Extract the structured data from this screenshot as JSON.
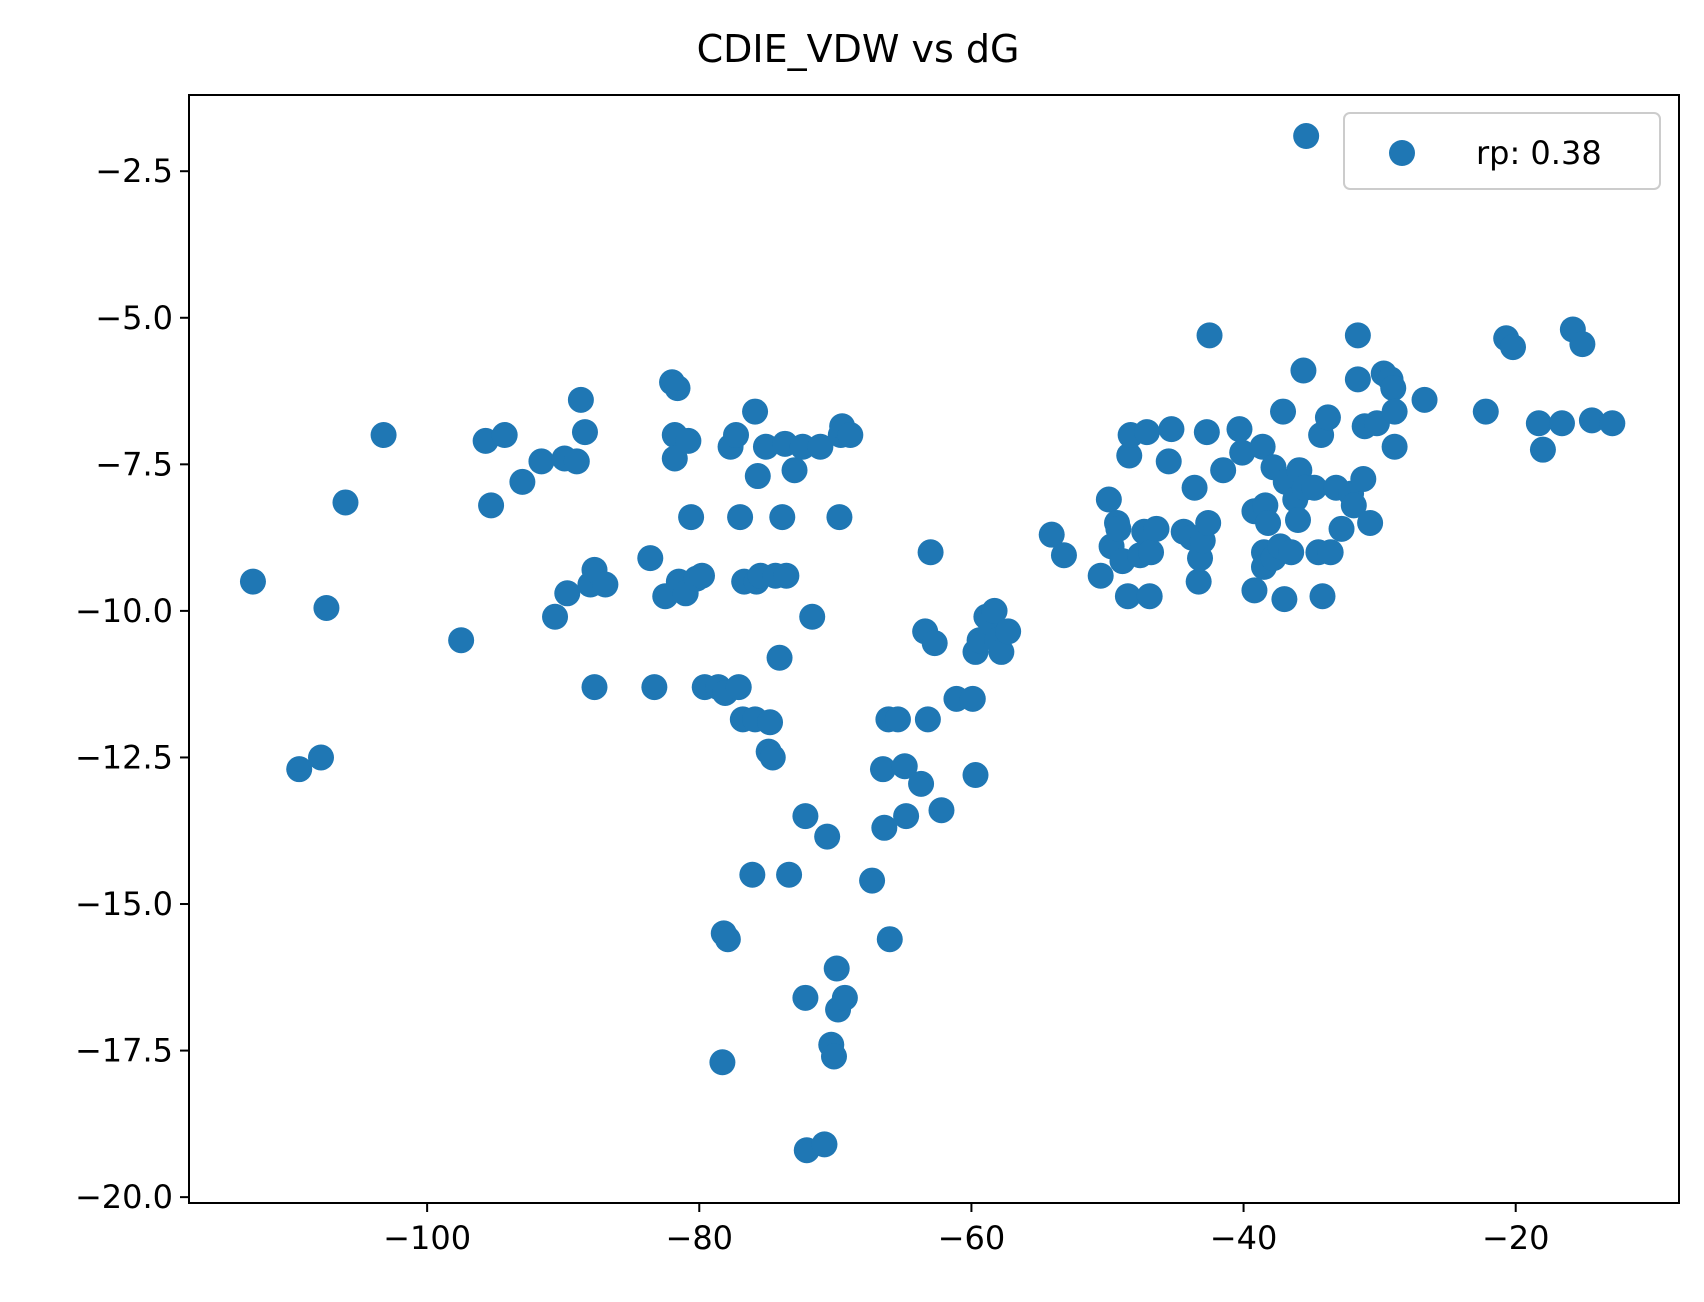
{
  "chart_data": {
    "type": "scatter",
    "title": "CDIE_VDW vs dG",
    "xlabel": "",
    "ylabel": "",
    "xlim": [
      -117.5,
      -8.0
    ],
    "ylim": [
      -20.1,
      -1.2
    ],
    "x_ticks": [
      -100,
      -80,
      -60,
      -40,
      -20
    ],
    "y_ticks": [
      -2.5,
      -5.0,
      -7.5,
      -10.0,
      -12.5,
      -15.0,
      -17.5,
      -20.0
    ],
    "x_tick_labels": [
      "−100",
      "−80",
      "−60",
      "−40",
      "−20"
    ],
    "y_tick_labels": [
      "−2.5",
      "−5.0",
      "−7.5",
      "−10.0",
      "−12.5",
      "−15.0",
      "−17.5",
      "−20.0"
    ],
    "grid": false,
    "legend_position": "upper right",
    "color": "#1f77b4",
    "series": [
      {
        "name": "rp: 0.38",
        "points": [
          [
            -112.8,
            -9.5
          ],
          [
            -109.4,
            -12.7
          ],
          [
            -107.8,
            -12.5
          ],
          [
            -107.4,
            -9.95
          ],
          [
            -106.0,
            -8.15
          ],
          [
            -103.2,
            -7.0
          ],
          [
            -97.5,
            -10.5
          ],
          [
            -95.7,
            -7.1
          ],
          [
            -95.3,
            -8.2
          ],
          [
            -94.3,
            -7.0
          ],
          [
            -93.0,
            -7.8
          ],
          [
            -91.6,
            -7.45
          ],
          [
            -90.6,
            -10.1
          ],
          [
            -89.9,
            -7.4
          ],
          [
            -89.7,
            -9.7
          ],
          [
            -89.0,
            -7.45
          ],
          [
            -88.7,
            -6.4
          ],
          [
            -88.4,
            -6.95
          ],
          [
            -88.0,
            -9.55
          ],
          [
            -87.7,
            -9.3
          ],
          [
            -87.7,
            -11.3
          ],
          [
            -86.9,
            -9.55
          ],
          [
            -83.6,
            -9.1
          ],
          [
            -83.3,
            -11.3
          ],
          [
            -82.5,
            -9.75
          ],
          [
            -82.0,
            -6.1
          ],
          [
            -81.8,
            -7.0
          ],
          [
            -81.8,
            -7.4
          ],
          [
            -81.6,
            -6.2
          ],
          [
            -81.5,
            -9.5
          ],
          [
            -81.0,
            -9.7
          ],
          [
            -80.8,
            -7.1
          ],
          [
            -80.6,
            -8.4
          ],
          [
            -80.2,
            -9.45
          ],
          [
            -79.8,
            -9.4
          ],
          [
            -79.6,
            -11.3
          ],
          [
            -78.6,
            -11.3
          ],
          [
            -78.3,
            -17.7
          ],
          [
            -78.2,
            -15.5
          ],
          [
            -78.1,
            -11.4
          ],
          [
            -77.9,
            -15.6
          ],
          [
            -77.7,
            -7.2
          ],
          [
            -77.3,
            -7.0
          ],
          [
            -77.1,
            -11.3
          ],
          [
            -77.0,
            -8.4
          ],
          [
            -76.8,
            -11.85
          ],
          [
            -76.7,
            -9.5
          ],
          [
            -76.1,
            -14.5
          ],
          [
            -75.9,
            -6.6
          ],
          [
            -75.9,
            -11.85
          ],
          [
            -75.8,
            -9.5
          ],
          [
            -75.7,
            -7.7
          ],
          [
            -75.5,
            -9.4
          ],
          [
            -75.1,
            -7.2
          ],
          [
            -74.9,
            -12.4
          ],
          [
            -74.8,
            -11.9
          ],
          [
            -74.6,
            -12.5
          ],
          [
            -74.4,
            -9.4
          ],
          [
            -74.1,
            -10.8
          ],
          [
            -73.9,
            -8.4
          ],
          [
            -73.6,
            -9.4
          ],
          [
            -73.7,
            -7.15
          ],
          [
            -73.4,
            -14.5
          ],
          [
            -73.0,
            -7.6
          ],
          [
            -72.4,
            -7.2
          ],
          [
            -72.2,
            -16.6
          ],
          [
            -72.1,
            -19.2
          ],
          [
            -72.2,
            -13.5
          ],
          [
            -71.7,
            -10.1
          ],
          [
            -71.1,
            -7.2
          ],
          [
            -70.8,
            -19.1
          ],
          [
            -70.6,
            -13.85
          ],
          [
            -70.3,
            -17.4
          ],
          [
            -70.1,
            -17.6
          ],
          [
            -69.9,
            -16.1
          ],
          [
            -69.8,
            -16.8
          ],
          [
            -69.7,
            -8.4
          ],
          [
            -69.6,
            -7.0
          ],
          [
            -69.5,
            -6.85
          ],
          [
            -69.3,
            -16.6
          ],
          [
            -68.9,
            -7.0
          ],
          [
            -67.3,
            -14.6
          ],
          [
            -66.5,
            -12.7
          ],
          [
            -66.4,
            -13.7
          ],
          [
            -66.1,
            -11.85
          ],
          [
            -66.0,
            -15.6
          ],
          [
            -65.4,
            -11.85
          ],
          [
            -64.9,
            -12.65
          ],
          [
            -64.8,
            -13.5
          ],
          [
            -63.7,
            -12.95
          ],
          [
            -63.4,
            -10.35
          ],
          [
            -63.2,
            -11.85
          ],
          [
            -63.0,
            -9.0
          ],
          [
            -62.7,
            -10.55
          ],
          [
            -62.2,
            -13.4
          ],
          [
            -61.1,
            -11.5
          ],
          [
            -59.9,
            -11.5
          ],
          [
            -59.7,
            -10.7
          ],
          [
            -59.7,
            -12.8
          ],
          [
            -59.4,
            -10.5
          ],
          [
            -58.9,
            -10.1
          ],
          [
            -58.6,
            -10.2
          ],
          [
            -58.3,
            -10.0
          ],
          [
            -58.1,
            -10.5
          ],
          [
            -57.8,
            -10.7
          ],
          [
            -57.3,
            -10.35
          ],
          [
            -54.1,
            -8.7
          ],
          [
            -53.2,
            -9.05
          ],
          [
            -50.5,
            -9.4
          ],
          [
            -49.9,
            -8.1
          ],
          [
            -49.7,
            -8.9
          ],
          [
            -49.3,
            -8.5
          ],
          [
            -49.2,
            -8.6
          ],
          [
            -48.9,
            -9.15
          ],
          [
            -48.5,
            -9.75
          ],
          [
            -48.4,
            -7.35
          ],
          [
            -48.3,
            -7.0
          ],
          [
            -47.6,
            -9.05
          ],
          [
            -47.3,
            -8.65
          ],
          [
            -47.1,
            -6.95
          ],
          [
            -46.9,
            -9.75
          ],
          [
            -46.8,
            -9.0
          ],
          [
            -46.4,
            -8.6
          ],
          [
            -45.5,
            -7.45
          ],
          [
            -45.3,
            -6.9
          ],
          [
            -44.4,
            -8.65
          ],
          [
            -43.8,
            -8.75
          ],
          [
            -43.6,
            -7.9
          ],
          [
            -43.3,
            -9.5
          ],
          [
            -43.2,
            -9.1
          ],
          [
            -43.0,
            -8.8
          ],
          [
            -42.7,
            -6.95
          ],
          [
            -42.6,
            -8.5
          ],
          [
            -42.5,
            -5.3
          ],
          [
            -41.5,
            -7.6
          ],
          [
            -40.3,
            -6.9
          ],
          [
            -40.1,
            -7.3
          ],
          [
            -39.2,
            -9.65
          ],
          [
            -39.2,
            -8.3
          ],
          [
            -38.6,
            -7.2
          ],
          [
            -38.5,
            -9.0
          ],
          [
            -38.5,
            -9.25
          ],
          [
            -38.4,
            -8.2
          ],
          [
            -38.2,
            -8.5
          ],
          [
            -37.8,
            -7.55
          ],
          [
            -37.8,
            -9.1
          ],
          [
            -37.3,
            -8.9
          ],
          [
            -37.0,
            -9.8
          ],
          [
            -37.1,
            -6.6
          ],
          [
            -36.9,
            -7.8
          ],
          [
            -36.5,
            -9.0
          ],
          [
            -36.2,
            -8.1
          ],
          [
            -36.0,
            -8.45
          ],
          [
            -35.9,
            -7.6
          ],
          [
            -35.6,
            -5.9
          ],
          [
            -35.5,
            -7.9
          ],
          [
            -35.4,
            -1.9
          ],
          [
            -34.8,
            -7.9
          ],
          [
            -34.5,
            -9.0
          ],
          [
            -34.3,
            -7.0
          ],
          [
            -34.2,
            -9.75
          ],
          [
            -33.8,
            -6.7
          ],
          [
            -33.6,
            -9.0
          ],
          [
            -33.2,
            -7.9
          ],
          [
            -32.8,
            -8.6
          ],
          [
            -32.1,
            -8.0
          ],
          [
            -31.9,
            -8.2
          ],
          [
            -31.6,
            -5.3
          ],
          [
            -31.6,
            -6.05
          ],
          [
            -31.2,
            -7.75
          ],
          [
            -31.1,
            -6.85
          ],
          [
            -30.7,
            -8.5
          ],
          [
            -30.2,
            -6.8
          ],
          [
            -29.7,
            -5.95
          ],
          [
            -29.2,
            -6.05
          ],
          [
            -29.0,
            -6.2
          ],
          [
            -28.9,
            -6.6
          ],
          [
            -28.9,
            -7.2
          ],
          [
            -26.7,
            -6.4
          ],
          [
            -22.2,
            -6.6
          ],
          [
            -20.7,
            -5.35
          ],
          [
            -20.2,
            -5.5
          ],
          [
            -18.3,
            -6.8
          ],
          [
            -18.0,
            -7.25
          ],
          [
            -16.6,
            -6.8
          ],
          [
            -15.8,
            -5.2
          ],
          [
            -15.1,
            -5.45
          ],
          [
            -14.4,
            -6.75
          ],
          [
            -12.9,
            -6.8
          ]
        ]
      }
    ]
  }
}
